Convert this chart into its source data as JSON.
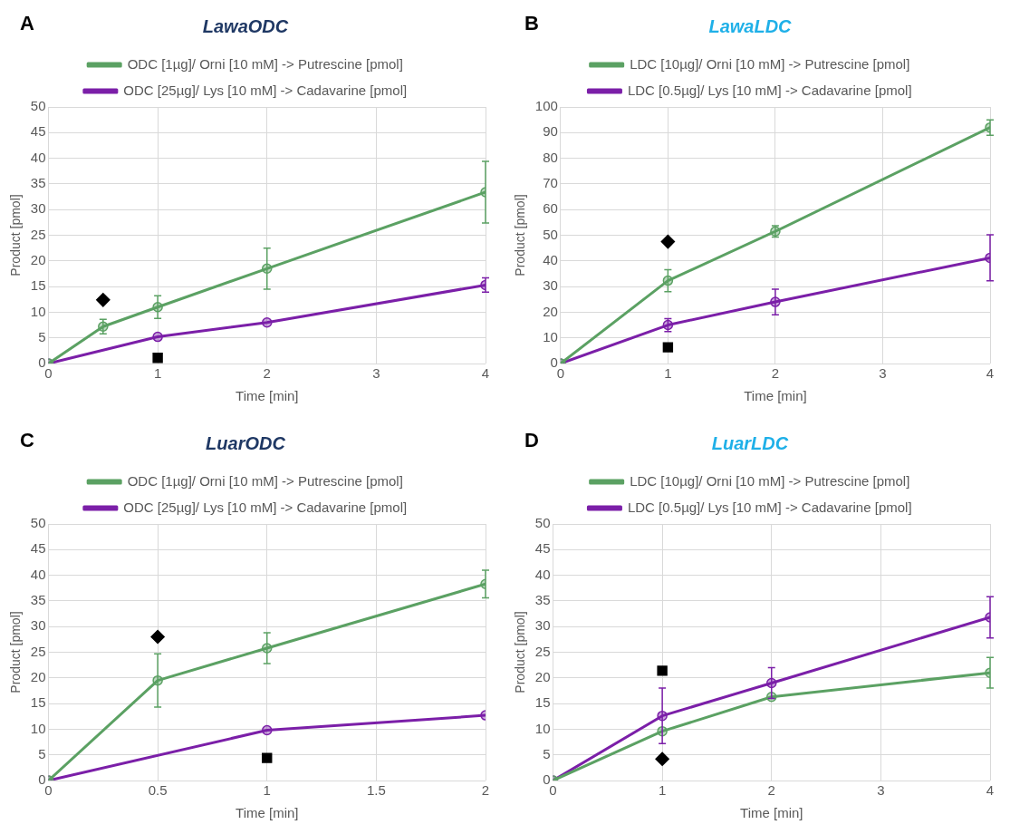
{
  "chart_data": [
    {
      "type": "line",
      "title": "LawaODC",
      "xlabel": "Time [min]",
      "ylabel": "Product [pmol]",
      "annotations": [
        "A"
      ],
      "xlim": [
        0,
        4
      ],
      "xticks": [
        0,
        1,
        2,
        3,
        4
      ],
      "ylim": [
        0,
        50
      ],
      "yticks": [
        0,
        5,
        10,
        15,
        20,
        25,
        30,
        35,
        40,
        45,
        50
      ],
      "grid": true,
      "legend": "top",
      "marker": "circle",
      "line_style": "solid",
      "series": [
        {
          "name": "ODC [1µg]/ Orni [10 mM] -> Putrescine [pmol]",
          "color": "#5ba163",
          "x": [
            0,
            0.5,
            1,
            2,
            4
          ],
          "values": [
            0,
            7.2,
            11,
            18.5,
            33.4
          ],
          "errors": [
            null,
            1.4,
            2.2,
            4,
            6
          ]
        },
        {
          "name": "ODC [25µg]/ Lys [10 mM] -> Cadavarine [pmol]",
          "color": "#7b1fa8",
          "x": [
            0,
            1,
            2,
            4
          ],
          "values": [
            0,
            5.2,
            8,
            15.3
          ],
          "errors": [
            null,
            null,
            null,
            1.4
          ]
        },
        {
          "type": "scatter",
          "marker": "diamond",
          "color": "#000000",
          "x": [
            0.5
          ],
          "values": [
            12.4
          ]
        },
        {
          "type": "scatter",
          "marker": "square",
          "color": "#000000",
          "x": [
            1
          ],
          "values": [
            1.1
          ]
        }
      ]
    },
    {
      "type": "line",
      "title": "LawaLDC",
      "xlabel": "Time [min]",
      "ylabel": "Product [pmol]",
      "annotations": [
        "B"
      ],
      "xlim": [
        0,
        4
      ],
      "xticks": [
        0,
        1,
        2,
        3,
        4
      ],
      "ylim": [
        0,
        100
      ],
      "yticks": [
        0,
        10,
        20,
        30,
        40,
        50,
        60,
        70,
        80,
        90,
        100
      ],
      "grid": true,
      "legend": "top",
      "marker": "circle",
      "line_style": "solid",
      "series": [
        {
          "name": "LDC [10µg]/ Orni [10 mM] -> Putrescine [pmol]",
          "color": "#5ba163",
          "x": [
            0,
            1,
            2,
            4
          ],
          "values": [
            0,
            32.3,
            51.5,
            92
          ],
          "errors": [
            null,
            4.3,
            2.2,
            3
          ]
        },
        {
          "name": "LDC [0.5µg]/ Lys [10 mM] -> Cadavarine [pmol]",
          "color": "#7b1fa8",
          "x": [
            0,
            1,
            2,
            4
          ],
          "values": [
            0,
            15,
            24,
            41.2
          ],
          "errors": [
            null,
            2.5,
            5,
            9
          ]
        },
        {
          "type": "scatter",
          "marker": "diamond",
          "color": "#000000",
          "x": [
            1
          ],
          "values": [
            47.5
          ]
        },
        {
          "type": "scatter",
          "marker": "square",
          "color": "#000000",
          "x": [
            1
          ],
          "values": [
            6.3
          ]
        }
      ]
    },
    {
      "type": "line",
      "title": "LuarODC",
      "xlabel": "Time [min]",
      "ylabel": "Product [pmol]",
      "annotations": [
        "C"
      ],
      "xlim": [
        0,
        2
      ],
      "xticks": [
        0,
        0.5,
        1,
        1.5,
        2
      ],
      "ylim": [
        0,
        50
      ],
      "yticks": [
        0,
        5,
        10,
        15,
        20,
        25,
        30,
        35,
        40,
        45,
        50
      ],
      "grid": true,
      "legend": "top",
      "marker": "circle",
      "line_style": "solid",
      "series": [
        {
          "name": "ODC [1µg]/ Orni [10 mM] -> Putrescine [pmol]",
          "color": "#5ba163",
          "x": [
            0,
            0.5,
            1,
            2
          ],
          "values": [
            0,
            19.5,
            25.8,
            38.3
          ],
          "errors": [
            null,
            5.2,
            3,
            2.7
          ]
        },
        {
          "name": "ODC [25µg]/ Lys [10 mM] -> Cadavarine [pmol]",
          "color": "#7b1fa8",
          "x": [
            0,
            1,
            2
          ],
          "values": [
            0,
            9.8,
            12.7
          ]
        },
        {
          "type": "scatter",
          "marker": "diamond",
          "color": "#000000",
          "x": [
            0.5
          ],
          "values": [
            28
          ]
        },
        {
          "type": "scatter",
          "marker": "square",
          "color": "#000000",
          "x": [
            1
          ],
          "values": [
            4.4
          ]
        }
      ]
    },
    {
      "type": "line",
      "title": "LuarLDC",
      "xlabel": "Time [min]",
      "ylabel": "Product [pmol]",
      "annotations": [
        "D"
      ],
      "xlim": [
        0,
        4
      ],
      "xticks": [
        0,
        1,
        2,
        3,
        4
      ],
      "ylim": [
        0,
        50
      ],
      "yticks": [
        0,
        5,
        10,
        15,
        20,
        25,
        30,
        35,
        40,
        45,
        50
      ],
      "grid": true,
      "legend": "top",
      "marker": "circle",
      "line_style": "solid",
      "series": [
        {
          "name": "LDC [10µg]/ Orni [10 mM] -> Putrescine [pmol]",
          "color": "#5ba163",
          "x": [
            0,
            1,
            2,
            4
          ],
          "values": [
            0,
            9.6,
            16.3,
            21
          ],
          "errors": [
            null,
            null,
            null,
            3
          ]
        },
        {
          "name": "LDC [0.5µg]/ Lys [10 mM] -> Cadavarine [pmol]",
          "color": "#7b1fa8",
          "x": [
            0,
            1,
            2,
            4
          ],
          "values": [
            0,
            12.6,
            19,
            31.8
          ],
          "errors": [
            null,
            5.4,
            3,
            4
          ]
        },
        {
          "type": "scatter",
          "marker": "diamond",
          "color": "#000000",
          "x": [
            1
          ],
          "values": [
            4.2
          ]
        },
        {
          "type": "scatter",
          "marker": "square",
          "color": "#000000",
          "x": [
            1
          ],
          "values": [
            21.4
          ]
        }
      ]
    }
  ]
}
